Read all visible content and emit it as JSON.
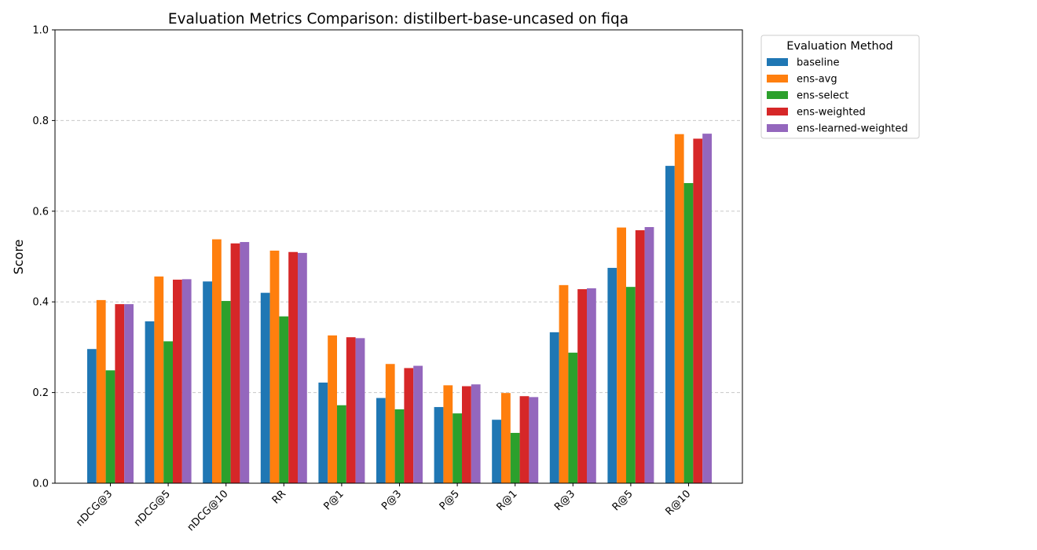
{
  "chart_data": {
    "type": "bar",
    "title": "Evaluation Metrics Comparison: distilbert-base-uncased on fiqa",
    "xlabel": "",
    "ylabel": "Score",
    "ylim": [
      0,
      1.0
    ],
    "y_ticks": [
      "0.0",
      "0.2",
      "0.4",
      "0.6",
      "0.8",
      "1.0"
    ],
    "grid": "y dashed",
    "legend_placement": "outside top-right",
    "legend_title": "Evaluation Method",
    "categories": [
      "nDCG@3",
      "nDCG@5",
      "nDCG@10",
      "RR",
      "P@1",
      "P@3",
      "P@5",
      "R@1",
      "R@3",
      "R@5",
      "R@10"
    ],
    "series": [
      {
        "name": "baseline",
        "color": "#1f77b4",
        "values": [
          0.296,
          0.357,
          0.445,
          0.42,
          0.222,
          0.188,
          0.168,
          0.14,
          0.333,
          0.475,
          0.7
        ]
      },
      {
        "name": "ens-avg",
        "color": "#ff7f0e",
        "values": [
          0.404,
          0.456,
          0.538,
          0.513,
          0.326,
          0.263,
          0.216,
          0.199,
          0.437,
          0.564,
          0.77
        ]
      },
      {
        "name": "ens-select",
        "color": "#2ca02c",
        "values": [
          0.249,
          0.313,
          0.402,
          0.368,
          0.172,
          0.163,
          0.154,
          0.111,
          0.288,
          0.433,
          0.662
        ]
      },
      {
        "name": "ens-weighted",
        "color": "#d62728",
        "values": [
          0.395,
          0.449,
          0.529,
          0.51,
          0.322,
          0.254,
          0.214,
          0.192,
          0.428,
          0.558,
          0.76
        ]
      },
      {
        "name": "ens-learned-weighted",
        "color": "#9467bd",
        "values": [
          0.395,
          0.45,
          0.532,
          0.508,
          0.32,
          0.259,
          0.218,
          0.19,
          0.43,
          0.565,
          0.771
        ]
      }
    ]
  }
}
